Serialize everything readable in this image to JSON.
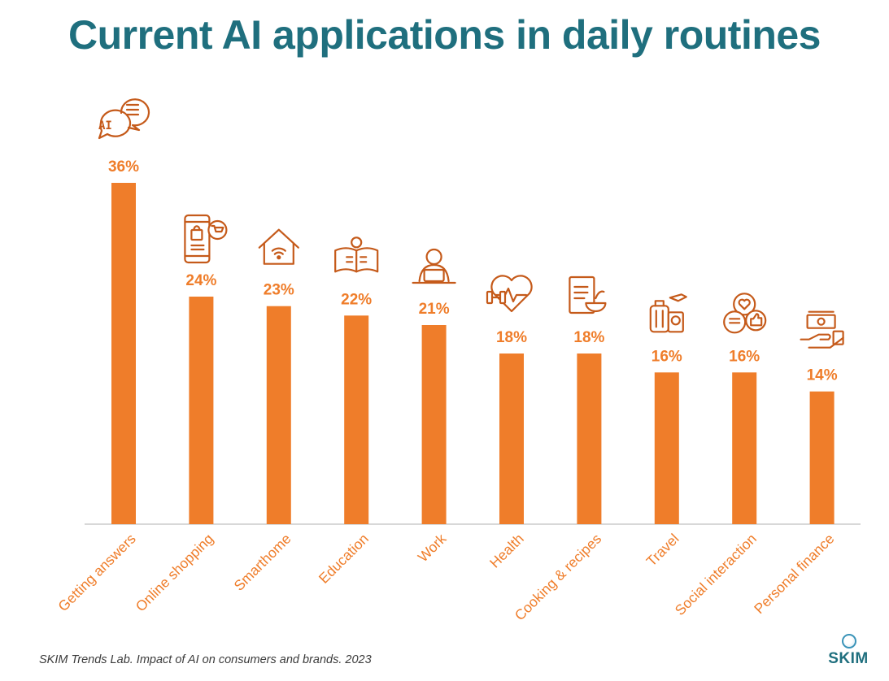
{
  "title": "Current AI applications in daily routines",
  "source": "SKIM Trends Lab. Impact of AI on consumers and brands. 2023",
  "logo_text": "SKIM",
  "colors": {
    "bar": "#ef7d2a",
    "label": "#ef7d2a",
    "icon": "#c55a1a",
    "title": "#1f6f7e",
    "axis": "#cccccc"
  },
  "chart_data": {
    "type": "bar",
    "title": "Current AI applications in daily routines",
    "categories": [
      "Getting answers",
      "Online shopping",
      "Smarthome",
      "Education",
      "Work",
      "Health",
      "Cooking & recipes",
      "Travel",
      "Social interaction",
      "Personal finance"
    ],
    "values": [
      36,
      24,
      23,
      22,
      21,
      18,
      18,
      16,
      16,
      14
    ],
    "value_labels": [
      "36%",
      "24%",
      "23%",
      "22%",
      "21%",
      "18%",
      "18%",
      "16%",
      "16%",
      "14%"
    ],
    "icons": [
      "ai-chat-icon",
      "mobile-shopping-icon",
      "smart-home-icon",
      "education-icon",
      "work-laptop-icon",
      "health-fitness-icon",
      "recipe-icon",
      "travel-icon",
      "social-interaction-icon",
      "finance-icon"
    ],
    "ylim": [
      0,
      36
    ],
    "grid": false,
    "legend": false
  }
}
